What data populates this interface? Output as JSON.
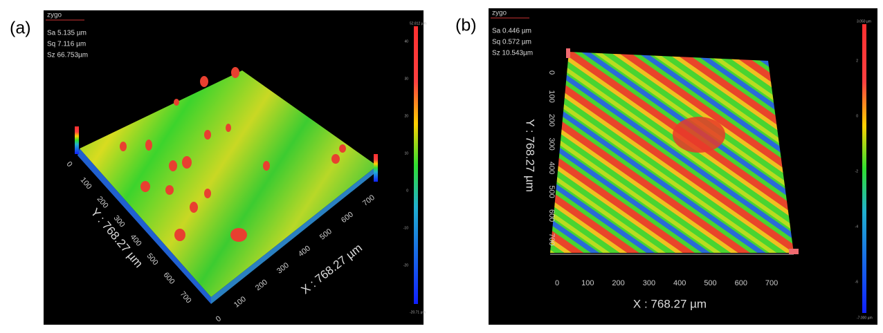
{
  "panels": [
    {
      "label": "(a)",
      "logo": "zygo",
      "stats": [
        "Sa 5.135  µm",
        "Sq 7.116  µm",
        "Sz 66.753µm"
      ],
      "x_axis": {
        "label": "X : 768.27 µm",
        "ticks": [
          "0",
          "100",
          "200",
          "300",
          "400",
          "500",
          "600",
          "700"
        ]
      },
      "y_axis": {
        "label": "Y : 768.27 µm",
        "ticks": [
          "0",
          "100",
          "200",
          "300",
          "400",
          "500",
          "600",
          "700"
        ]
      },
      "colorbar": {
        "max": "52.812 µm",
        "min": "-20.71 µm",
        "ticks": [
          "40",
          "30",
          "20",
          "10",
          "0",
          "-10",
          "-20"
        ]
      }
    },
    {
      "label": "(b)",
      "logo": "zygo",
      "stats": [
        "Sa 0.446  µm",
        "Sq 0.572  µm",
        "Sz 10.543µm"
      ],
      "x_axis": {
        "label": "X : 768.27 µm",
        "ticks": [
          "0",
          "100",
          "200",
          "300",
          "400",
          "500",
          "600",
          "700"
        ]
      },
      "y_axis": {
        "label": "Y : 768.27 µm",
        "ticks": [
          "0",
          "100",
          "200",
          "300",
          "400",
          "500",
          "600",
          "700"
        ]
      },
      "colorbar": {
        "max": "3.050 µm",
        "min": "-7.000 µm",
        "ticks": [
          "2",
          "0",
          "-2",
          "-4",
          "-6"
        ]
      }
    }
  ]
}
